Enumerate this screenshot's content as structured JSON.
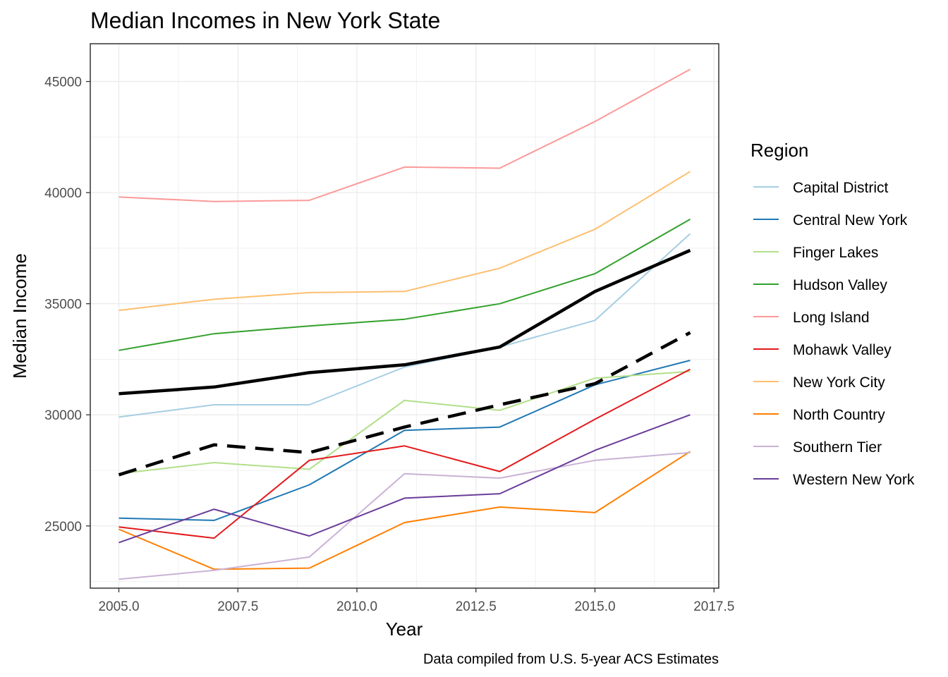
{
  "chart_data": {
    "type": "line",
    "title": "Median Incomes in New York State",
    "xlabel": "Year",
    "ylabel": "Median Income",
    "caption": "Data compiled from U.S. 5-year ACS Estimates",
    "legend_title": "Region",
    "legend_position": "right",
    "grid": true,
    "xlim": [
      2004.4,
      2017.6
    ],
    "ylim": [
      22200,
      46700
    ],
    "x_ticks": [
      2005.0,
      2007.5,
      2010.0,
      2012.5,
      2015.0,
      2017.5
    ],
    "x_tick_labels": [
      "2005.0",
      "2007.5",
      "2010.0",
      "2012.5",
      "2015.0",
      "2017.5"
    ],
    "y_ticks": [
      25000,
      30000,
      35000,
      40000,
      45000
    ],
    "y_tick_labels": [
      "25000",
      "30000",
      "35000",
      "40000",
      "45000"
    ],
    "x": [
      2005,
      2007,
      2009,
      2011,
      2013,
      2015,
      2017
    ],
    "series": [
      {
        "name": "Capital District",
        "color": "#a6cee3",
        "values": [
          29900,
          30450,
          30450,
          32150,
          33050,
          34250,
          38150
        ]
      },
      {
        "name": "Central New York",
        "color": "#1f78b4",
        "values": [
          25350,
          25250,
          26850,
          29300,
          29450,
          31350,
          32450
        ]
      },
      {
        "name": "Finger Lakes",
        "color": "#b2df8a",
        "values": [
          27350,
          27850,
          27550,
          30650,
          30200,
          31650,
          31950
        ]
      },
      {
        "name": "Hudson Valley",
        "color": "#33a02c",
        "values": [
          32900,
          33650,
          34000,
          34300,
          35000,
          36350,
          38800
        ]
      },
      {
        "name": "Long Island",
        "color": "#fb9a99",
        "values": [
          39800,
          39600,
          39650,
          41150,
          41100,
          43200,
          45550
        ]
      },
      {
        "name": "Mohawk Valley",
        "color": "#e31a1c",
        "values": [
          24950,
          24450,
          27950,
          28600,
          27450,
          29800,
          32050
        ]
      },
      {
        "name": "New York City",
        "color": "#fdbf6f",
        "values": [
          34700,
          35200,
          35500,
          35550,
          36600,
          38350,
          40950
        ]
      },
      {
        "name": "North Country",
        "color": "#ff7f00",
        "values": [
          24850,
          23050,
          23100,
          25150,
          25850,
          25600,
          28350
        ]
      },
      {
        "name": "Southern Tier",
        "color": "#cab2d6",
        "values": [
          22600,
          23000,
          23600,
          27350,
          27150,
          27950,
          28300
        ]
      },
      {
        "name": "Western New York",
        "color": "#6a3d9a",
        "values": [
          24250,
          25750,
          24550,
          26250,
          26450,
          28400,
          30000
        ]
      }
    ],
    "reference_lines": [
      {
        "style": "solid",
        "color": "#000000",
        "values": [
          30950,
          31250,
          31900,
          32250,
          33050,
          35550,
          37400
        ]
      },
      {
        "style": "dashed",
        "color": "#000000",
        "values": [
          27300,
          28650,
          28300,
          29450,
          30450,
          31400,
          33700
        ]
      }
    ]
  }
}
